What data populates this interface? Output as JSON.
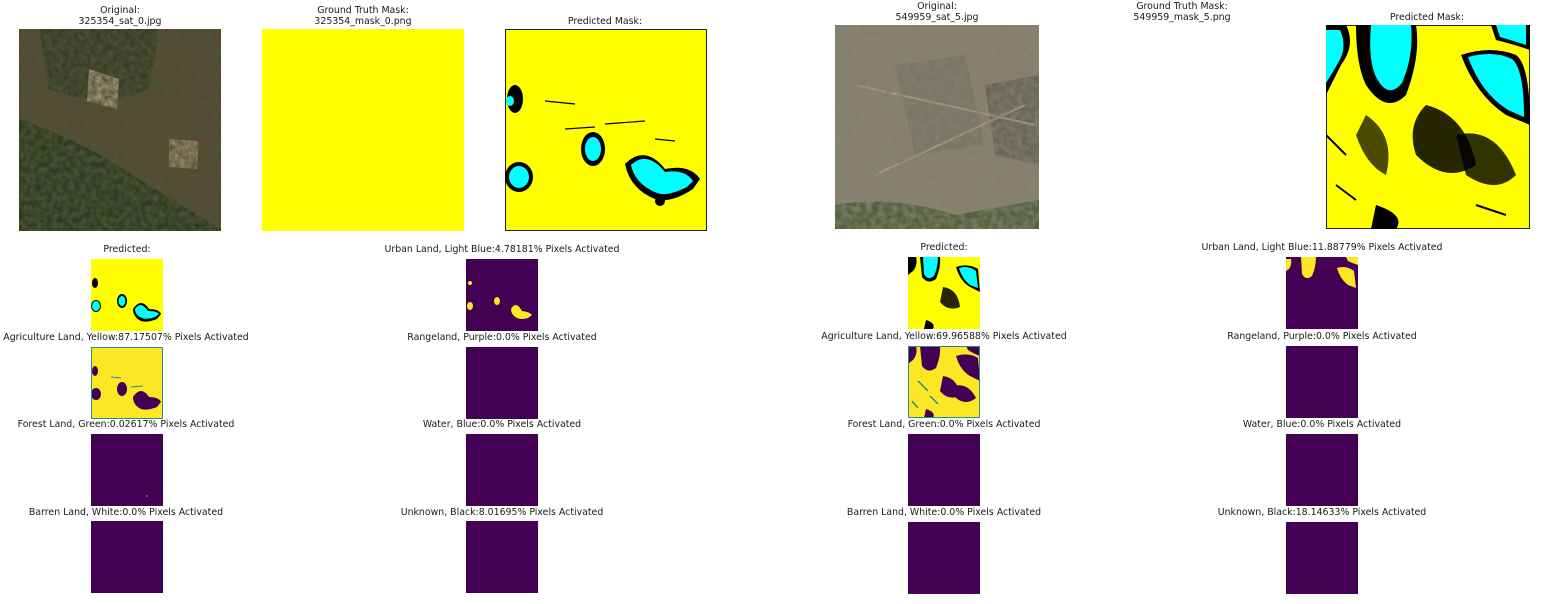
{
  "sample_1": {
    "original_title": "Original:",
    "original_file": "325354_sat_0.jpg",
    "gt_title": "Ground Truth Mask:",
    "gt_file": "325354_mask_0.png",
    "pred_mask_title": "Predicted Mask:",
    "predicted_title": "Predicted:",
    "classes": [
      {
        "label": "Urban Land, Light Blue:4.78181% Pixels Activated",
        "percent": 4.78181
      },
      {
        "label": "Agriculture Land, Yellow:87.17507% Pixels Activated",
        "percent": 87.17507
      },
      {
        "label": "Rangeland, Purple:0.0% Pixels Activated",
        "percent": 0.0
      },
      {
        "label": "Forest Land, Green:0.02617% Pixels Activated",
        "percent": 0.02617
      },
      {
        "label": "Water, Blue:0.0% Pixels Activated",
        "percent": 0.0
      },
      {
        "label": "Barren Land, White:0.0% Pixels Activated",
        "percent": 0.0
      },
      {
        "label": "Unknown, Black:8.01695% Pixels Activated",
        "percent": 8.01695
      }
    ]
  },
  "sample_2": {
    "original_title": "Original:",
    "original_file": "549959_sat_5.jpg",
    "gt_title": "Ground Truth Mask:",
    "gt_file": "549959_mask_5.png",
    "pred_mask_title": "Predicted Mask:",
    "predicted_title": "Predicted:",
    "classes": [
      {
        "label": "Urban Land, Light Blue:11.88779% Pixels Activated",
        "percent": 11.88779
      },
      {
        "label": "Agriculture Land, Yellow:69.96588% Pixels Activated",
        "percent": 69.96588
      },
      {
        "label": "Rangeland, Purple:0.0% Pixels Activated",
        "percent": 0.0
      },
      {
        "label": "Forest Land, Green:0.0% Pixels Activated",
        "percent": 0.0
      },
      {
        "label": "Water, Blue:0.0% Pixels Activated",
        "percent": 0.0
      },
      {
        "label": "Barren Land, White:0.0% Pixels Activated",
        "percent": 0.0
      },
      {
        "label": "Unknown, Black:18.14633% Pixels Activated",
        "percent": 18.14633
      }
    ]
  },
  "colors": {
    "mask_yellow": "#ffff00",
    "mask_cyan": "#00ffff",
    "mask_black": "#000000",
    "viridis_purple": "#440154",
    "viridis_yellow": "#fde725",
    "viridis_teal": "#21918c"
  }
}
